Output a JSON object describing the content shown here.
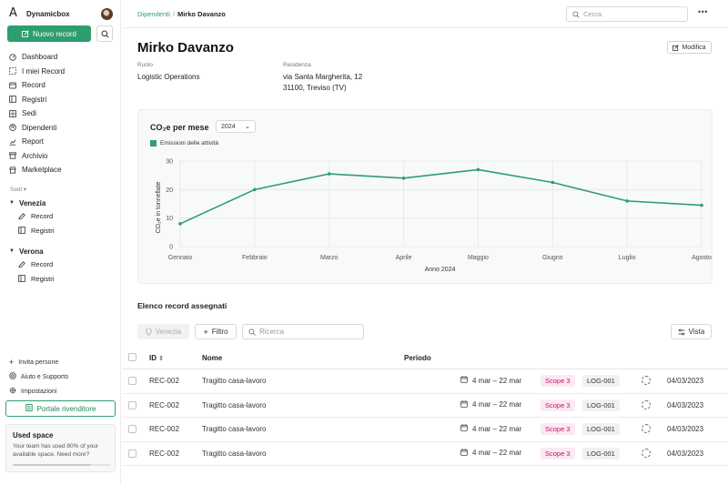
{
  "app": {
    "name": "Dynamicbox"
  },
  "sidebar": {
    "new_record": "Nuovo record",
    "nav": [
      {
        "label": "Dashboard",
        "icon": "dashboard-icon"
      },
      {
        "label": "I miei Record",
        "icon": "my-records-icon"
      },
      {
        "label": "Record",
        "icon": "record-icon"
      },
      {
        "label": "Registri",
        "icon": "registers-icon"
      },
      {
        "label": "Sedi",
        "icon": "locations-icon"
      },
      {
        "label": "Dipendenti",
        "icon": "employees-icon"
      },
      {
        "label": "Report",
        "icon": "report-icon"
      },
      {
        "label": "Archivio",
        "icon": "archive-icon"
      },
      {
        "label": "Marketplace",
        "icon": "marketplace-icon"
      }
    ],
    "sedi_label": "Sedi",
    "locations": [
      {
        "name": "Venezia",
        "children": [
          "Record",
          "Registri"
        ]
      },
      {
        "name": "Verona",
        "children": [
          "Record",
          "Registri"
        ]
      }
    ],
    "bottom_links": [
      {
        "label": "Invita persone",
        "icon": "plus-icon"
      },
      {
        "label": "Aiuto e Supporto",
        "icon": "help-icon"
      },
      {
        "label": "Impostazioni",
        "icon": "settings-icon"
      }
    ],
    "portal_button": "Portale rivenditore",
    "used_space": {
      "title": "Used space",
      "text": "Your team has used 80% of your available space. Need more?",
      "percent": 80
    }
  },
  "topbar": {
    "breadcrumb_parent": "Dipendenti",
    "breadcrumb_sep": "/",
    "breadcrumb_current": "Mirko Davanzo",
    "search_placeholder": "Cerca",
    "more": "•••"
  },
  "employee": {
    "name": "Mirko Davanzo",
    "edit_label": "Modifica",
    "role_label": "Ruolo",
    "role_value": "Logistic Operations",
    "residence_label": "Residenza",
    "residence_line1": "via Santa Margherita, 12",
    "residence_line2": "31100, Treviso (TV)"
  },
  "chart": {
    "title": "CO₂e per mese",
    "year": "2024"
  },
  "chart_data": {
    "type": "line",
    "xlabel": "Anno 2024",
    "ylabel": "CO₂e in tonnellate",
    "categories": [
      "Gennaio",
      "Febbraio",
      "Marzo",
      "Aprile",
      "Maggio",
      "Giugno",
      "Luglio",
      "Agosto"
    ],
    "series": [
      {
        "name": "Emissioni delle attività",
        "values": [
          8,
          20,
          25.5,
          24,
          27,
          22.5,
          16,
          14.5
        ]
      }
    ],
    "ylim": [
      0,
      30
    ],
    "yticks": [
      0,
      10,
      20,
      30
    ],
    "grid": true,
    "legend": "top-left",
    "color": "#2e9e6e"
  },
  "table": {
    "section_title": "Elenco record assegnati",
    "filter_location": "Venezia",
    "filter_button": "Filtro",
    "search_placeholder": "Ricerca",
    "view_button": "Vista",
    "columns": {
      "id": "ID",
      "name": "Nome",
      "period": "Periodo"
    },
    "rows": [
      {
        "id": "REC-002",
        "name": "Tragitto casa-lavoro",
        "period": "4 mar – 22 mar",
        "scope": "Scope 3",
        "log": "LOG-001",
        "date": "04/03/2023"
      },
      {
        "id": "REC-002",
        "name": "Tragitto casa-lavoro",
        "period": "4 mar – 22 mar",
        "scope": "Scope 3",
        "log": "LOG-001",
        "date": "04/03/2023"
      },
      {
        "id": "REC-002",
        "name": "Tragitto casa-lavoro",
        "period": "4 mar – 22 mar",
        "scope": "Scope 3",
        "log": "LOG-001",
        "date": "04/03/2023"
      },
      {
        "id": "REC-002",
        "name": "Tragitto casa-lavoro",
        "period": "4 mar – 22 mar",
        "scope": "Scope 3",
        "log": "LOG-001",
        "date": "04/03/2023"
      }
    ]
  }
}
